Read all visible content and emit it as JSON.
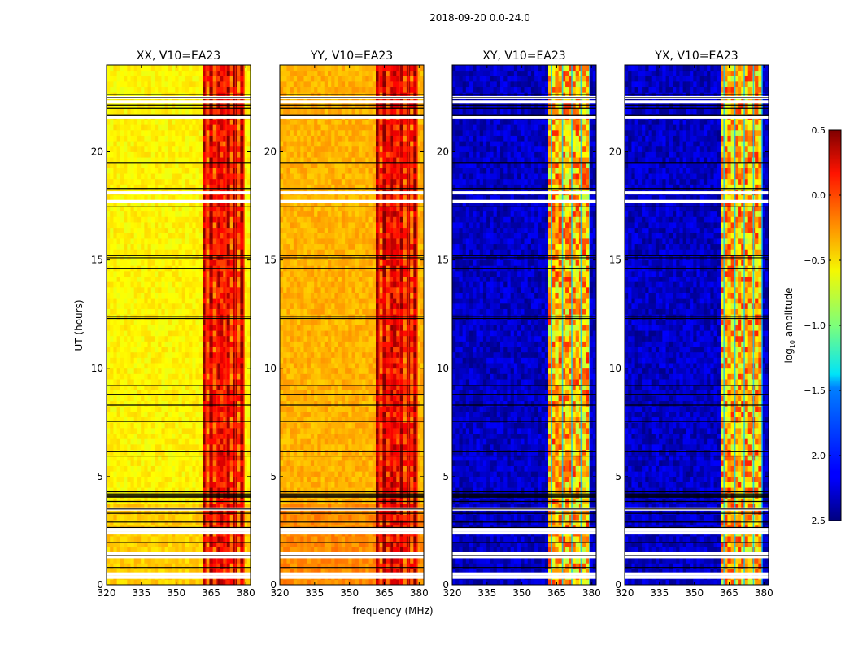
{
  "chart_data": {
    "type": "heatmap",
    "suptitle": "2018-09-20 0.0-24.0",
    "xlabel": "frequency (MHz)",
    "ylabel": "UT (hours)",
    "xlim": [
      320,
      382
    ],
    "ylim": [
      0,
      24
    ],
    "xticks": [
      320,
      335,
      350,
      365,
      380
    ],
    "xtick_labels": [
      "320",
      "335",
      "350",
      "365",
      "380"
    ],
    "yticks": [
      0,
      5,
      10,
      15,
      20
    ],
    "ytick_labels": [
      "0",
      "5",
      "10",
      "15",
      "20"
    ],
    "colorbar": {
      "label_main": "log",
      "label_sub": "10",
      "label_tail": " amplitude",
      "range": [
        -2.5,
        0.5
      ],
      "colormap": "jet",
      "ticks": [
        0.5,
        0.0,
        -0.5,
        -1.0,
        -1.5,
        -2.0,
        -2.5
      ],
      "tick_labels": [
        "0.5",
        "0.0",
        "−0.5",
        "−1.0",
        "−1.5",
        "−2.0",
        "−2.5"
      ]
    },
    "band_mhz": [
      361,
      379
    ],
    "panels": [
      {
        "title": "XX, V10=EA23",
        "baseline_value": -0.6,
        "band_value": 0.1
      },
      {
        "title": "YY, V10=EA23",
        "baseline_value": -0.4,
        "band_value": 0.15
      },
      {
        "title": "XY, V10=EA23",
        "baseline_value": -2.3,
        "band_value": -0.5
      },
      {
        "title": "YX, V10=EA23",
        "baseline_value": -2.3,
        "band_value": -0.5
      }
    ],
    "flagged_gaps_ut": [
      0.35,
      0.5,
      1.3,
      1.45,
      2.4,
      2.55,
      3.5,
      17.7,
      18.1,
      21.6,
      22.3,
      22.5
    ],
    "dark_lines_ut": [
      0.8,
      1.35,
      1.95,
      2.65,
      2.9,
      3.3,
      3.5,
      3.85,
      4.05,
      4.1,
      4.15,
      4.2,
      4.3,
      5.95,
      6.15,
      7.55,
      8.3,
      8.8,
      9.2,
      12.3,
      12.4,
      14.6,
      15.1,
      15.2,
      17.45,
      18.3,
      19.5,
      21.7,
      22.0,
      22.15,
      22.5,
      22.65
    ]
  }
}
